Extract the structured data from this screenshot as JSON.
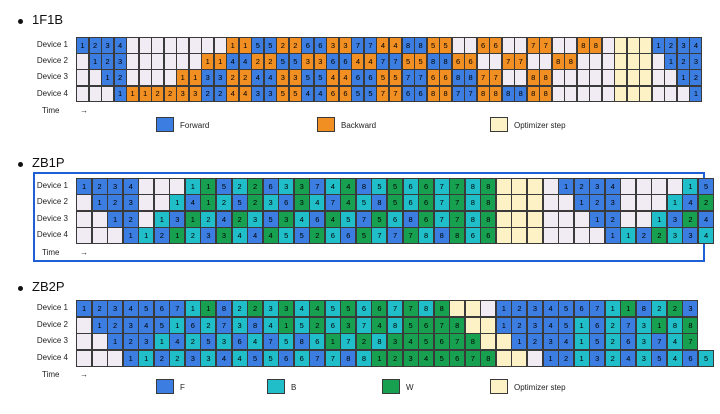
{
  "colors": {
    "F": "#3b7de0",
    "B": "#f28f22",
    "Bz": "#20bec8",
    "W": "#16a050",
    "opt": "#fdf2c6",
    "idle": "#f1ecf3"
  },
  "time_label": "Time",
  "time_arrow": "→",
  "sections": [
    {
      "title": "1F1B",
      "rows": [
        {
          "label": "Device 1",
          "cells": [
            "F1",
            "F2",
            "F3",
            "F4",
            "_",
            "_",
            "_",
            "_",
            "_",
            "_",
            "_",
            "_",
            "B1",
            "B1",
            "F5",
            "F5",
            "B2",
            "B2",
            "F6",
            "F6",
            "B3",
            "B3",
            "F7",
            "F7",
            "B4",
            "B4",
            "F8",
            "F8",
            "B5",
            "B5",
            "_",
            "_",
            "B6",
            "B6",
            "_",
            "_",
            "B7",
            "B7",
            "_",
            "_",
            "B8",
            "B8",
            "_",
            "O",
            "O",
            "O",
            "F1",
            "F2",
            "F3",
            "F4"
          ]
        },
        {
          "label": "Device 2",
          "cells": [
            "_",
            "F1",
            "F2",
            "F3",
            "_",
            "_",
            "_",
            "_",
            "_",
            "_",
            "B1",
            "B1",
            "F4",
            "F4",
            "B2",
            "B2",
            "F5",
            "F5",
            "B3",
            "B3",
            "F6",
            "F6",
            "B4",
            "B4",
            "F7",
            "F7",
            "B5",
            "B5",
            "F8",
            "F8",
            "B6",
            "B6",
            "_",
            "_",
            "B7",
            "B7",
            "_",
            "_",
            "B8",
            "B8",
            "_",
            "_",
            "_",
            "O",
            "O",
            "O",
            "_",
            "F1",
            "F2",
            "F3"
          ]
        },
        {
          "label": "Device 3",
          "cells": [
            "_",
            "_",
            "F1",
            "F2",
            "_",
            "_",
            "_",
            "_",
            "B1",
            "B1",
            "F3",
            "F3",
            "B2",
            "B2",
            "F4",
            "F4",
            "B3",
            "B3",
            "F5",
            "F5",
            "B4",
            "B4",
            "F6",
            "F6",
            "B5",
            "B5",
            "F7",
            "F7",
            "B6",
            "B6",
            "F8",
            "F8",
            "B7",
            "B7",
            "_",
            "_",
            "B8",
            "B8",
            "_",
            "_",
            "_",
            "_",
            "_",
            "O",
            "O",
            "O",
            "_",
            "_",
            "F1",
            "F2"
          ]
        },
        {
          "label": "Device 4",
          "cells": [
            "_",
            "_",
            "_",
            "F1",
            "B1",
            "B1",
            "B2",
            "B2",
            "B3",
            "B3",
            "F2",
            "F2",
            "B4",
            "B4",
            "F3",
            "F3",
            "B5",
            "B5",
            "F4",
            "F4",
            "B6",
            "B6",
            "F5",
            "F5",
            "B7",
            "B7",
            "F6",
            "F6",
            "B8",
            "B8",
            "F7",
            "F7",
            "B8",
            "B8",
            "F8",
            "F8",
            "B8",
            "B8",
            "_",
            "_",
            "_",
            "_",
            "_",
            "O",
            "O",
            "O",
            "_",
            "_",
            "_",
            "F1"
          ]
        }
      ],
      "legend": [
        {
          "kind": "F",
          "label": "Forward"
        },
        {
          "kind": "B",
          "label": "Backward"
        },
        {
          "kind": "opt",
          "label": "Optimizer step"
        }
      ]
    },
    {
      "title": "ZB1P",
      "rows": [
        {
          "label": "Device 1",
          "cells": [
            "F1",
            "F2",
            "F3",
            "F4",
            "_",
            "_",
            "_",
            "Z1",
            "W1",
            "F5",
            "Z2",
            "W2",
            "F6",
            "Z3",
            "W3",
            "F7",
            "Z4",
            "W4",
            "F8",
            "Z5",
            "W5",
            "Z6",
            "W6",
            "Z7",
            "W7",
            "Z8",
            "W8",
            "O",
            "O",
            "O",
            "_",
            "F1",
            "F2",
            "F3",
            "F4",
            "_",
            "_",
            "_",
            "_",
            "Z1",
            "F5"
          ]
        },
        {
          "label": "Device 2",
          "cells": [
            "_",
            "F1",
            "F2",
            "F3",
            "_",
            "_",
            "Z1",
            "F4",
            "W1",
            "Z2",
            "F5",
            "W2",
            "Z3",
            "F6",
            "W3",
            "Z4",
            "F7",
            "W4",
            "Z5",
            "F8",
            "W5",
            "Z6",
            "W6",
            "Z7",
            "W7",
            "Z8",
            "W8",
            "O",
            "O",
            "O",
            "_",
            "_",
            "F1",
            "F2",
            "F3",
            "_",
            "_",
            "_",
            "Z1",
            "F4",
            "W2"
          ]
        },
        {
          "label": "Device 3",
          "cells": [
            "_",
            "_",
            "F1",
            "F2",
            "_",
            "Z1",
            "F3",
            "W1",
            "Z2",
            "F4",
            "W2",
            "Z3",
            "F5",
            "W3",
            "Z4",
            "F6",
            "W4",
            "Z5",
            "F7",
            "W5",
            "Z6",
            "F8",
            "W6",
            "Z7",
            "W7",
            "Z8",
            "W8",
            "O",
            "O",
            "O",
            "_",
            "_",
            "_",
            "F1",
            "F2",
            "_",
            "_",
            "Z1",
            "F3",
            "W2",
            "F4"
          ]
        },
        {
          "label": "Device 4",
          "cells": [
            "_",
            "_",
            "_",
            "F1",
            "Z1",
            "F2",
            "W1",
            "Z2",
            "F3",
            "W3",
            "Z4",
            "F4",
            "W4",
            "Z5",
            "F5",
            "W2",
            "Z6",
            "F6",
            "W5",
            "Z7",
            "F7",
            "W7",
            "Z8",
            "F8",
            "W8",
            "Z6",
            "W6",
            "O",
            "O",
            "O",
            "_",
            "_",
            "_",
            "_",
            "F1",
            "Z1",
            "F2",
            "W2",
            "Z3",
            "F3",
            "Z4"
          ]
        }
      ],
      "legend": []
    },
    {
      "title": "ZB2P",
      "rows": [
        {
          "label": "Device 1",
          "cells": [
            "F1",
            "F2",
            "F3",
            "F4",
            "F5",
            "F6",
            "F7",
            "Z1",
            "W1",
            "F8",
            "Z2",
            "W2",
            "Z3",
            "W3",
            "Z4",
            "W4",
            "Z5",
            "W5",
            "Z6",
            "W6",
            "Z7",
            "W7",
            "Z8",
            "W8",
            "O",
            "O",
            "_",
            "F1",
            "F2",
            "F3",
            "F4",
            "F5",
            "F6",
            "F7",
            "Z1",
            "W1",
            "F8",
            "Z2",
            "W2",
            "F3"
          ]
        },
        {
          "label": "Device 2",
          "cells": [
            "_",
            "F1",
            "F2",
            "F3",
            "F4",
            "F5",
            "Z1",
            "F6",
            "Z2",
            "F7",
            "Z3",
            "F8",
            "Z4",
            "W1",
            "Z5",
            "W2",
            "Z6",
            "W3",
            "Z7",
            "W4",
            "Z8",
            "W5",
            "W6",
            "W7",
            "W8",
            "O",
            "O",
            "F1",
            "F2",
            "F3",
            "F4",
            "F5",
            "Z1",
            "F6",
            "Z2",
            "F7",
            "Z3",
            "W1",
            "Z8",
            "W8"
          ]
        },
        {
          "label": "Device 3",
          "cells": [
            "_",
            "_",
            "F1",
            "F2",
            "F3",
            "Z1",
            "F4",
            "Z2",
            "F5",
            "Z3",
            "F6",
            "Z4",
            "F7",
            "Z5",
            "F8",
            "Z6",
            "W1",
            "Z7",
            "W2",
            "Z8",
            "W3",
            "W4",
            "W5",
            "W6",
            "W7",
            "W8",
            "O",
            "O",
            "F1",
            "F2",
            "F3",
            "F4",
            "Z1",
            "F5",
            "Z2",
            "F6",
            "Z3",
            "F7",
            "Z4",
            "W7"
          ]
        },
        {
          "label": "Device 4",
          "cells": [
            "_",
            "_",
            "_",
            "F1",
            "Z1",
            "F2",
            "Z2",
            "F3",
            "Z3",
            "F4",
            "Z4",
            "F5",
            "Z5",
            "F6",
            "Z6",
            "F7",
            "Z7",
            "F8",
            "Z8",
            "W1",
            "W2",
            "W3",
            "W4",
            "W5",
            "W6",
            "W7",
            "W8",
            "O",
            "O",
            "_",
            "F1",
            "F2",
            "Z1",
            "F3",
            "Z2",
            "F4",
            "Z3",
            "F5",
            "Z4",
            "F6",
            "Z5"
          ]
        }
      ],
      "legend": [
        {
          "kind": "F",
          "label": "F"
        },
        {
          "kind": "Bz",
          "label": "B"
        },
        {
          "kind": "W",
          "label": "W"
        },
        {
          "kind": "opt",
          "label": "Optimizer step"
        }
      ]
    }
  ]
}
